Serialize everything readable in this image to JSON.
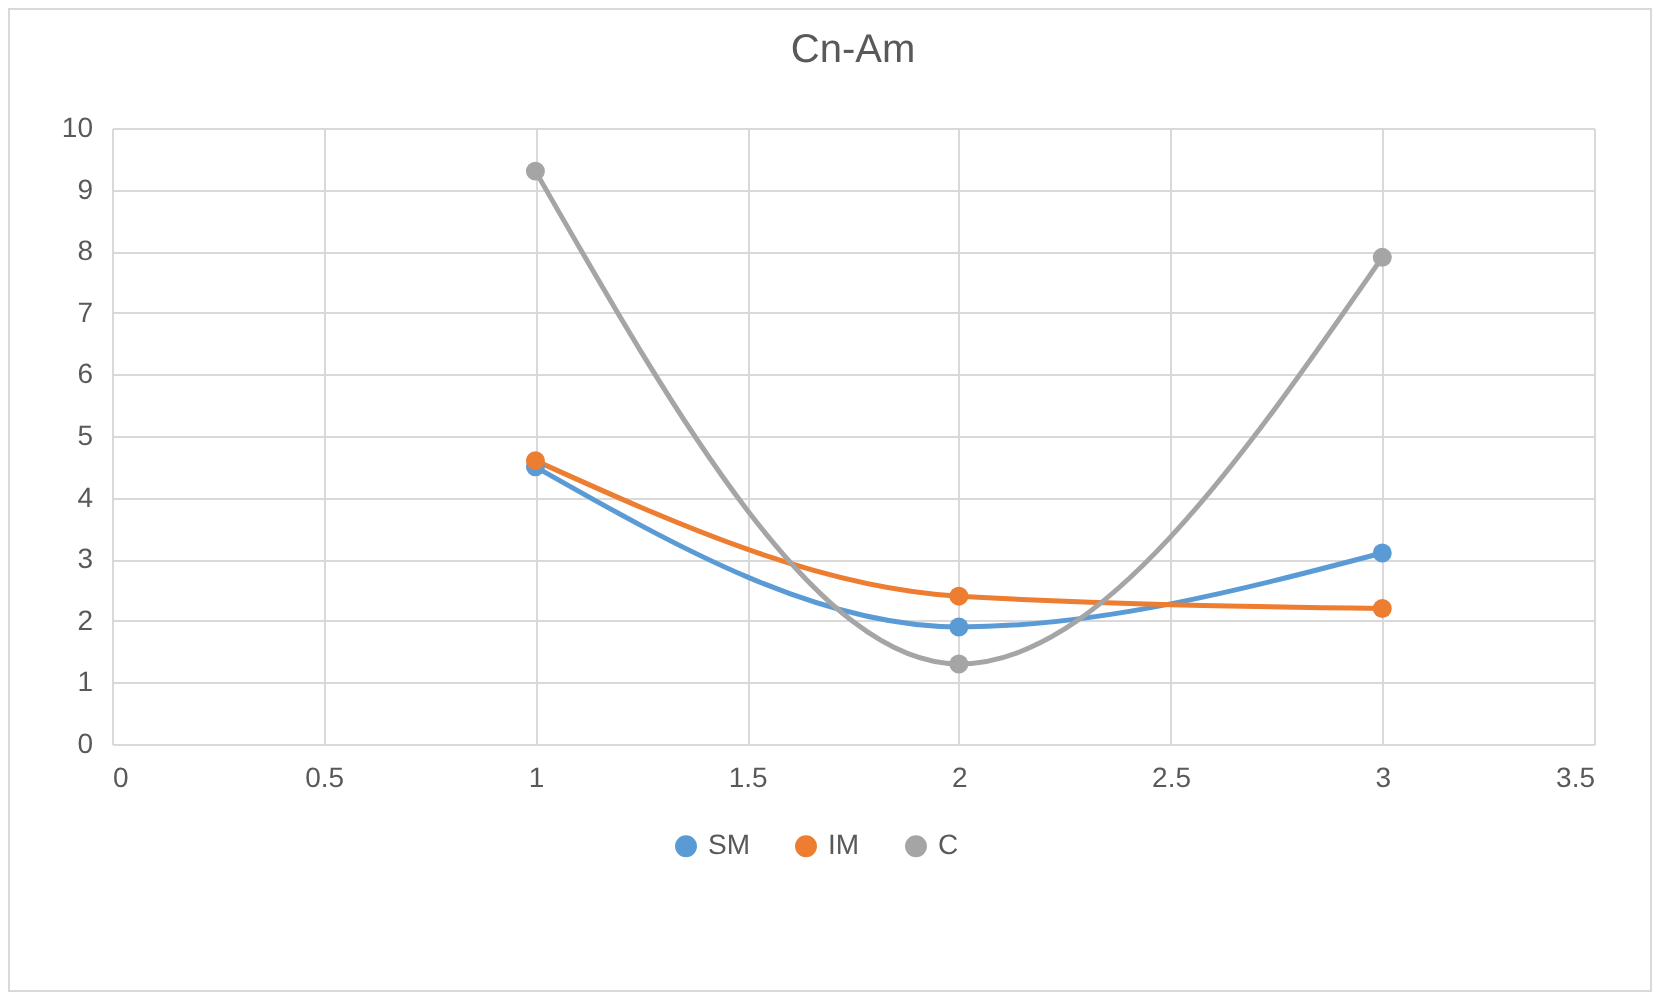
{
  "chart_data": {
    "type": "line",
    "title": "Cn-Am",
    "x": [
      1,
      2,
      3
    ],
    "series": [
      {
        "name": "SM",
        "color": "#5b9bd5",
        "values": [
          4.5,
          1.9,
          3.1
        ]
      },
      {
        "name": "IM",
        "color": "#ed7d31",
        "values": [
          4.6,
          2.4,
          2.2
        ]
      },
      {
        "name": "C",
        "color": "#a5a5a5",
        "values": [
          9.3,
          1.3,
          7.9
        ]
      }
    ],
    "xlim": [
      0,
      3.5
    ],
    "xticks": [
      0,
      0.5,
      1,
      1.5,
      2,
      2.5,
      3,
      3.5
    ],
    "ylim": [
      0,
      10
    ],
    "yticks": [
      0,
      1,
      2,
      3,
      4,
      5,
      6,
      7,
      8,
      9,
      10
    ],
    "grid": true,
    "legend": "bottom",
    "marker": "circle",
    "line_style": "solid"
  }
}
